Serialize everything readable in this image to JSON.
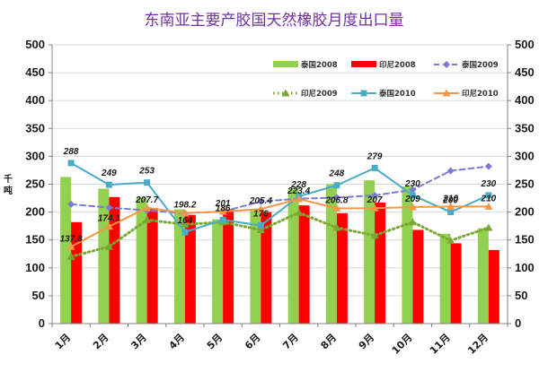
{
  "chart_data": {
    "type": "bar",
    "title": "东南亚主要产胶国天然橡胶月度出口量",
    "ylabel": "千吨",
    "xlabel": "",
    "ylim": [
      0,
      500
    ],
    "y_ticks": [
      0,
      50,
      100,
      150,
      200,
      250,
      300,
      350,
      400,
      450,
      500
    ],
    "secondary_ylim": [
      0,
      500
    ],
    "grid": true,
    "legend_position": "top-right",
    "categories": [
      "1月",
      "2月",
      "3月",
      "4月",
      "5月",
      "6月",
      "7月",
      "8月",
      "9月",
      "10月",
      "11月",
      "12月"
    ],
    "series": [
      {
        "name": "泰国2008",
        "kind": "bar",
        "color": "#92d050",
        "values": [
          263,
          242,
          226,
          205,
          187,
          203,
          243,
          250,
          257,
          246,
          161,
          171
        ]
      },
      {
        "name": "印尼2008",
        "kind": "bar",
        "color": "#ff0000",
        "values": [
          182,
          227,
          207,
          195,
          205,
          200,
          212,
          198,
          217,
          168,
          144,
          132
        ]
      },
      {
        "name": "泰国2009",
        "kind": "line",
        "style": "dashed",
        "marker": "diamond",
        "color": "#7b7bd6",
        "values": [
          214,
          208,
          203,
          198,
          201,
          219,
          224,
          226,
          230,
          240,
          274,
          282
        ]
      },
      {
        "name": "印尼2009",
        "kind": "line",
        "style": "dotted",
        "marker": "triangle",
        "color": "#79a832",
        "values": [
          120,
          138,
          186,
          178,
          182,
          168,
          199,
          172,
          158,
          182,
          149,
          172
        ]
      },
      {
        "name": "泰国2010",
        "kind": "line",
        "style": "solid",
        "marker": "square",
        "color": "#4bacc6",
        "values": [
          288,
          249,
          253,
          164,
          186,
          176,
          228,
          248,
          279,
          230,
          200,
          230
        ]
      },
      {
        "name": "印尼2010",
        "kind": "line",
        "style": "solid",
        "marker": "triangle",
        "color": "#f79646",
        "values": [
          137.8,
          174.1,
          207.7,
          198.2,
          201,
          205.4,
          223.4,
          206.8,
          207,
          209,
          210,
          210
        ]
      }
    ],
    "data_labels": {
      "泰国2010": [
        "288",
        "249",
        "253",
        "164",
        "186",
        "176",
        "228",
        "248",
        "279",
        "230",
        "200",
        "230"
      ],
      "印尼2010": [
        "137.8",
        "174.1",
        "207.7",
        "198.2",
        "201",
        "205.4",
        "223.4",
        "206.8",
        "207",
        "209",
        "210",
        "210"
      ]
    }
  },
  "colors": {
    "axis": "#808080",
    "grid": "#d9d9d9",
    "title": "#7030a0",
    "background": "#ffffff"
  }
}
